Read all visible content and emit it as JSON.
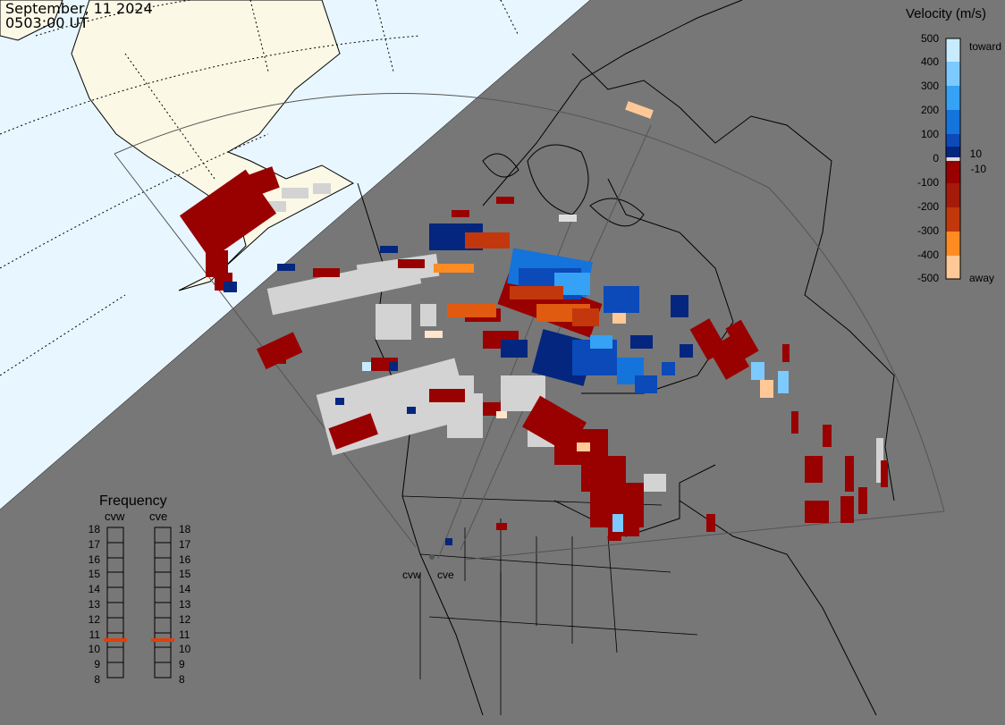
{
  "header": {
    "date": "September, 11 2024",
    "time": "0503:00 UT"
  },
  "velocity_scale": {
    "title": "Velocity (m/s)",
    "ticks": [
      "500",
      "400",
      "300",
      "200",
      "100",
      "10",
      "0",
      "-10",
      "-100",
      "-200",
      "-300",
      "-400",
      "-500"
    ],
    "toward_label": "toward",
    "away_label": "away",
    "colors": [
      "#c8ecff",
      "#7ccaff",
      "#35a2f5",
      "#1573dc",
      "#0b4ab8",
      "#04267e",
      "#000066",
      "#dddddd",
      "#990000",
      "#a51b0a",
      "#c2380c",
      "#e05a10",
      "#ff8c22",
      "#ffc896",
      "#ffe6cc"
    ]
  },
  "frequency_panel": {
    "title": "Frequency",
    "radars": [
      {
        "name": "cvw",
        "active": 11
      },
      {
        "name": "cve",
        "active": 11
      }
    ],
    "levels": [
      "18",
      "17",
      "16",
      "15",
      "14",
      "13",
      "12",
      "11",
      "10",
      "9",
      "8"
    ],
    "active_color": "#e0400a"
  },
  "map": {
    "sites": [
      "cvw",
      "cve"
    ],
    "ocean_color": "#e8f6ff",
    "land_color_day": "#fbf8e6",
    "night_color": "#777777",
    "scatter_colors": {
      "ground": "#d3d3d3",
      "away": "#990000",
      "toward": "#04267e"
    }
  }
}
